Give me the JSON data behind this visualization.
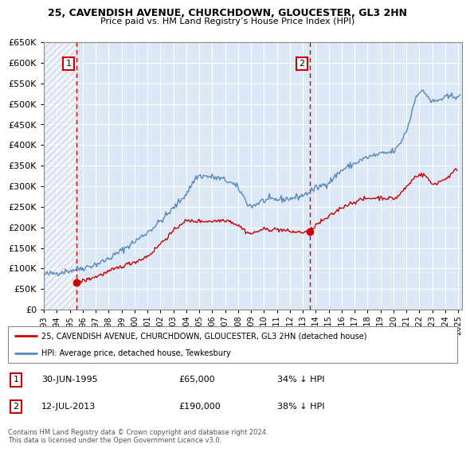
{
  "title": "25, CAVENDISH AVENUE, CHURCHDOWN, GLOUCESTER, GL3 2HN",
  "subtitle": "Price paid vs. HM Land Registry’s House Price Index (HPI)",
  "legend_line1": "25, CAVENDISH AVENUE, CHURCHDOWN, GLOUCESTER, GL3 2HN (detached house)",
  "legend_line2": "HPI: Average price, detached house, Tewkesbury",
  "annotation1_label": "1",
  "annotation1_date": "30-JUN-1995",
  "annotation1_price": "£65,000",
  "annotation1_hpi": "34% ↓ HPI",
  "annotation2_label": "2",
  "annotation2_date": "12-JUL-2013",
  "annotation2_price": "£190,000",
  "annotation2_hpi": "38% ↓ HPI",
  "footnote": "Contains HM Land Registry data © Crown copyright and database right 2024.\nThis data is licensed under the Open Government Licence v3.0.",
  "red_color": "#cc0000",
  "blue_color": "#5588bb",
  "grid_color": "#cccccc",
  "bg_color": "#dce8f5",
  "hatch_color": "#bbbbbb",
  "ylim": [
    0,
    650000
  ],
  "yticks": [
    0,
    50000,
    100000,
    150000,
    200000,
    250000,
    300000,
    350000,
    400000,
    450000,
    500000,
    550000,
    600000,
    650000
  ],
  "point1_x": 1995.5,
  "point1_y": 65000,
  "point2_x": 2013.54,
  "point2_y": 190000,
  "xlim_left": 1993.0,
  "xlim_right": 2025.3
}
